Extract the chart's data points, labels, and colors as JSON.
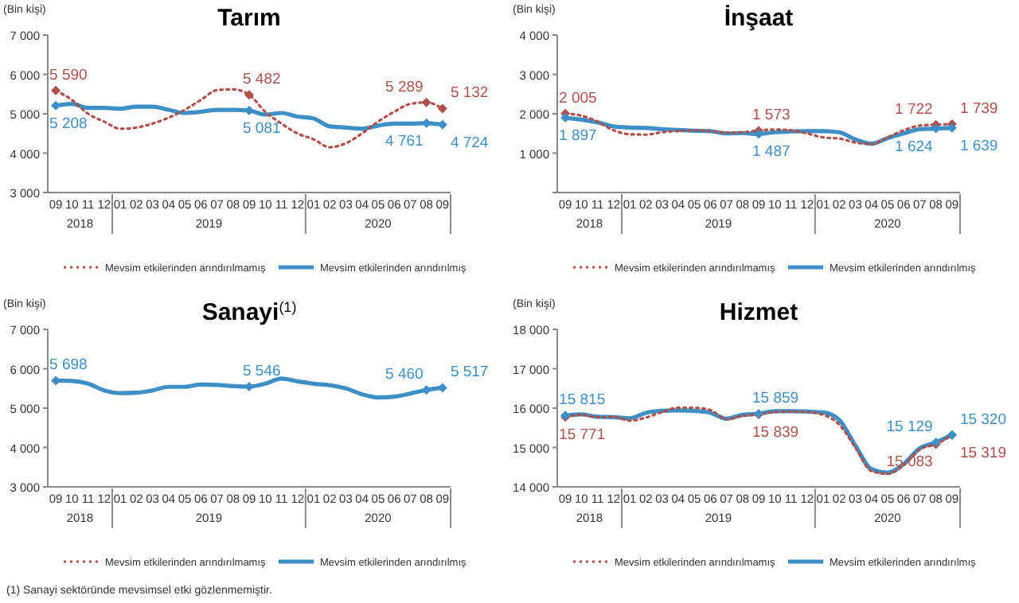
{
  "chart_data": [
    {
      "type": "line",
      "title": "Tarım",
      "ylabel": "(Bin kişi)",
      "categories": [
        "09",
        "10",
        "11",
        "12",
        "01",
        "02",
        "03",
        "04",
        "05",
        "06",
        "07",
        "08",
        "09",
        "10",
        "11",
        "12",
        "01",
        "02",
        "03",
        "04",
        "05",
        "06",
        "07",
        "08",
        "09"
      ],
      "annotations": [
        "2018",
        "2019",
        "2020"
      ],
      "ylim": [
        3000,
        7000
      ],
      "yticks": [
        {
          "value": 3000,
          "label": "3 000"
        },
        {
          "value": 4000,
          "label": "4 000"
        },
        {
          "value": 5000,
          "label": "5 000"
        },
        {
          "value": 6000,
          "label": "6 000"
        },
        {
          "value": 7000,
          "label": "7 000"
        }
      ],
      "legend": "bottom",
      "series": [
        {
          "name": "Mevsim etkilerinden arındırılmamış",
          "color": "#b0504c",
          "line_style": "dotted",
          "values": [
            5590,
            5350,
            5000,
            4800,
            4620,
            4650,
            4750,
            4900,
            5100,
            5350,
            5600,
            5620,
            5482,
            5050,
            4750,
            4500,
            4350,
            4150,
            4250,
            4500,
            4800,
            5050,
            5250,
            5289,
            5132
          ],
          "value_labels": [
            "5 590",
            null,
            null,
            null,
            null,
            null,
            null,
            null,
            null,
            null,
            null,
            null,
            "5 482",
            null,
            null,
            null,
            null,
            null,
            null,
            null,
            null,
            null,
            null,
            "5 289",
            "5 132"
          ]
        },
        {
          "name": "Mevsim etkilerinden arındırılmış",
          "color": "#3d8fc6",
          "line_style": "solid",
          "values": [
            5208,
            5250,
            5150,
            5150,
            5130,
            5180,
            5180,
            5100,
            5020,
            5050,
            5100,
            5100,
            5081,
            4980,
            5020,
            4930,
            4880,
            4680,
            4650,
            4620,
            4700,
            4750,
            4750,
            4761,
            4724
          ],
          "value_labels": [
            "5 208",
            null,
            null,
            null,
            null,
            null,
            null,
            null,
            null,
            null,
            null,
            null,
            "5 081",
            null,
            null,
            null,
            null,
            null,
            null,
            null,
            null,
            null,
            null,
            "4 761",
            "4 724"
          ]
        }
      ]
    },
    {
      "type": "line",
      "title": "İnşaat",
      "ylabel": "(Bin kişi)",
      "categories": [
        "09",
        "10",
        "11",
        "12",
        "01",
        "02",
        "03",
        "04",
        "05",
        "06",
        "07",
        "08",
        "09",
        "10",
        "11",
        "12",
        "01",
        "02",
        "03",
        "04",
        "05",
        "06",
        "07",
        "08",
        "09"
      ],
      "annotations": [
        "2018",
        "2019",
        "2020"
      ],
      "ylim": [
        0,
        4000
      ],
      "yticks": [
        {
          "value": 0,
          "label": null
        },
        {
          "value": 1000,
          "label": "1 000"
        },
        {
          "value": 2000,
          "label": "2 000"
        },
        {
          "value": 3000,
          "label": "3 000"
        },
        {
          "value": 4000,
          "label": "4 000"
        }
      ],
      "legend": "bottom",
      "series": [
        {
          "name": "Mevsim etkilerinden arındırılmamış",
          "color": "#b0504c",
          "line_style": "dotted",
          "values": [
            2005,
            1950,
            1800,
            1580,
            1480,
            1470,
            1530,
            1560,
            1580,
            1560,
            1520,
            1530,
            1573,
            1600,
            1580,
            1500,
            1400,
            1370,
            1270,
            1230,
            1400,
            1580,
            1700,
            1722,
            1739
          ],
          "value_labels": [
            "2 005",
            null,
            null,
            null,
            null,
            null,
            null,
            null,
            null,
            null,
            null,
            null,
            "1 573",
            null,
            null,
            null,
            null,
            null,
            null,
            null,
            null,
            null,
            null,
            "1 722",
            "1 739"
          ]
        },
        {
          "name": "Mevsim etkilerinden arındırılmış",
          "color": "#3d8fc6",
          "line_style": "solid",
          "values": [
            1897,
            1850,
            1780,
            1680,
            1650,
            1640,
            1610,
            1590,
            1570,
            1560,
            1500,
            1510,
            1487,
            1530,
            1550,
            1560,
            1560,
            1530,
            1350,
            1240,
            1380,
            1500,
            1610,
            1624,
            1639
          ],
          "value_labels": [
            "1 897",
            null,
            null,
            null,
            null,
            null,
            null,
            null,
            null,
            null,
            null,
            null,
            "1 487",
            null,
            null,
            null,
            null,
            null,
            null,
            null,
            null,
            null,
            null,
            "1 624",
            "1 639"
          ]
        }
      ]
    },
    {
      "type": "line",
      "title": "Sanayi$^{(1)}$",
      "ylabel": "(Bin kişi)",
      "categories": [
        "09",
        "10",
        "11",
        "12",
        "01",
        "02",
        "03",
        "04",
        "05",
        "06",
        "07",
        "08",
        "09",
        "10",
        "11",
        "12",
        "01",
        "02",
        "03",
        "04",
        "05",
        "06",
        "07",
        "08",
        "09"
      ],
      "annotations": [
        "2018",
        "2019",
        "2020",
        "(1) Sanayi sektöründe mevsimsel etki gözlenmemiştir."
      ],
      "ylim": [
        3000,
        7000
      ],
      "yticks": [
        {
          "value": 3000,
          "label": "3 000"
        },
        {
          "value": 4000,
          "label": "4 000"
        },
        {
          "value": 5000,
          "label": "5 000"
        },
        {
          "value": 6000,
          "label": "6 000"
        },
        {
          "value": 7000,
          "label": "7 000"
        }
      ],
      "legend": "bottom",
      "series": [
        {
          "name": "Mevsim etkilerinden arındırılmamış",
          "color": "#b0504c",
          "line_style": "dotted",
          "values": [
            null,
            null,
            null,
            null,
            null,
            null,
            null,
            null,
            null,
            null,
            null,
            null,
            null,
            null,
            null,
            null,
            null,
            null,
            null,
            null,
            null,
            null,
            null,
            null,
            null
          ]
        },
        {
          "name": "Mevsim etkilerinden arındırılmış",
          "color": "#3d8fc6",
          "line_style": "solid",
          "values": [
            5698,
            5690,
            5620,
            5450,
            5380,
            5390,
            5450,
            5540,
            5540,
            5600,
            5590,
            5560,
            5546,
            5620,
            5750,
            5680,
            5620,
            5580,
            5500,
            5350,
            5270,
            5290,
            5370,
            5460,
            5517
          ],
          "value_labels": [
            "5 698",
            null,
            null,
            null,
            null,
            null,
            null,
            null,
            null,
            null,
            null,
            null,
            "5 546",
            null,
            null,
            null,
            null,
            null,
            null,
            null,
            null,
            null,
            null,
            "5 460",
            "5 517"
          ]
        }
      ]
    },
    {
      "type": "line",
      "title": "Hizmet",
      "ylabel": "(Bin kişi)",
      "categories": [
        "09",
        "10",
        "11",
        "12",
        "01",
        "02",
        "03",
        "04",
        "05",
        "06",
        "07",
        "08",
        "09",
        "10",
        "11",
        "12",
        "01",
        "02",
        "03",
        "04",
        "05",
        "06",
        "07",
        "08",
        "09"
      ],
      "annotations": [
        "2018",
        "2019",
        "2020"
      ],
      "ylim": [
        14000,
        18000
      ],
      "yticks": [
        {
          "value": 14000,
          "label": "14 000"
        },
        {
          "value": 15000,
          "label": "15 000"
        },
        {
          "value": 16000,
          "label": "16 000"
        },
        {
          "value": 17000,
          "label": "17 000"
        },
        {
          "value": 18000,
          "label": "18 000"
        }
      ],
      "legend": "bottom",
      "series": [
        {
          "name": "Mevsim etkilerinden arındırılmamış",
          "color": "#b0504c",
          "line_style": "dotted",
          "values": [
            15771,
            15830,
            15770,
            15780,
            15680,
            15760,
            15900,
            16010,
            16010,
            15950,
            15720,
            15800,
            15839,
            15900,
            15910,
            15900,
            15830,
            15580,
            15000,
            14400,
            14330,
            14550,
            14950,
            15083,
            15319
          ],
          "value_labels": [
            "15 771",
            null,
            null,
            null,
            null,
            null,
            null,
            null,
            null,
            null,
            null,
            null,
            "15 839",
            null,
            null,
            null,
            null,
            null,
            null,
            null,
            null,
            null,
            null,
            "15 083",
            "15 319"
          ]
        },
        {
          "name": "Mevsim etkilerinden arındırılmış",
          "color": "#3d8fc6",
          "line_style": "solid",
          "values": [
            15815,
            15840,
            15780,
            15770,
            15740,
            15880,
            15930,
            15940,
            15930,
            15880,
            15730,
            15830,
            15859,
            15920,
            15920,
            15910,
            15890,
            15700,
            15050,
            14450,
            14360,
            14580,
            14980,
            15129,
            15320
          ],
          "value_labels": [
            "15 815",
            null,
            null,
            null,
            null,
            null,
            null,
            null,
            null,
            null,
            null,
            null,
            "15 859",
            null,
            null,
            null,
            null,
            null,
            null,
            null,
            null,
            null,
            null,
            "15 129",
            "15 320"
          ]
        }
      ]
    }
  ]
}
